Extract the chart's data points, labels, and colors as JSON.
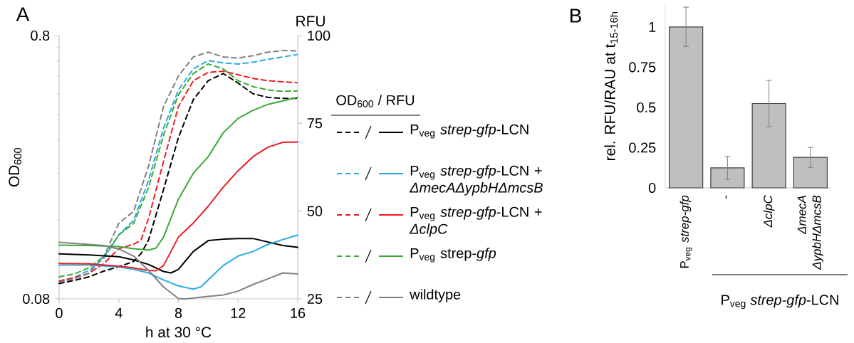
{
  "chart_data": [
    {
      "type": "line",
      "title": "A",
      "xlabel": "h at 30 °C",
      "ylabel": "OD$_{600}$",
      "y2label": "RFU",
      "legend_title": "OD$_{600}$ / RFU",
      "legend": "right",
      "log": "y",
      "xlim": [
        0,
        16
      ],
      "xticks": [
        0,
        4,
        8,
        12,
        16
      ],
      "ylim": [
        0.08,
        0.8
      ],
      "yticks": [
        0.08,
        0.8
      ],
      "y2lim": [
        25,
        100
      ],
      "y2ticks": [
        25,
        50,
        75,
        100
      ],
      "series": [
        {
          "color": "#000000",
          "axis": "y",
          "line_style": "dashed",
          "x": [
            0,
            1,
            2,
            3,
            4,
            5,
            5.5,
            6,
            7,
            8,
            9,
            10,
            11,
            12,
            13,
            14,
            15,
            16
          ],
          "values": [
            0.0915,
            0.094,
            0.097,
            0.102,
            0.106,
            0.111,
            0.119,
            0.134,
            0.208,
            0.328,
            0.457,
            0.539,
            0.574,
            0.528,
            0.481,
            0.466,
            0.462,
            0.462
          ]
        },
        {
          "name": "P$_{veg}$ *strep-gfp*-LCN",
          "color": "#000000",
          "axis": "y2",
          "line_style": "solid",
          "x": [
            0,
            2,
            4,
            5,
            6,
            7,
            7.5,
            8,
            9,
            10,
            11,
            12,
            13,
            14,
            15,
            16
          ],
          "values": [
            37.8,
            37.5,
            37.0,
            36.1,
            34.8,
            32.8,
            32.4,
            33.4,
            38.5,
            41.6,
            42.0,
            42.2,
            42.2,
            41.2,
            40.2,
            39.7
          ]
        },
        {
          "color": "#29abe2",
          "axis": "y",
          "line_style": "dashed",
          "x": [
            0,
            1,
            2,
            3,
            4,
            5,
            6,
            7,
            8,
            9,
            10,
            11,
            12,
            13,
            14,
            15,
            16
          ],
          "values": [
            0.0925,
            0.0964,
            0.1026,
            0.114,
            0.14,
            0.159,
            0.226,
            0.356,
            0.497,
            0.598,
            0.643,
            0.63,
            0.624,
            0.634,
            0.65,
            0.664,
            0.678
          ]
        },
        {
          "name": "P$_{veg}$ *strep-gfp*-LCN + *ΔmecAΔypbHΔmcsB*",
          "color": "#29abe2",
          "axis": "y2",
          "line_style": "solid",
          "x": [
            0,
            2,
            4,
            5,
            6,
            7,
            8,
            9,
            9.5,
            10,
            11,
            12,
            13,
            14,
            15,
            16
          ],
          "values": [
            34.6,
            34.6,
            34.1,
            33.4,
            32.4,
            30.4,
            28.7,
            27.8,
            28.4,
            30.4,
            34.5,
            37.2,
            38.5,
            40.5,
            41.9,
            43.2
          ]
        },
        {
          "color": "#ed1c24",
          "axis": "y",
          "line_style": "dashed",
          "x": [
            0,
            1,
            2,
            3,
            4,
            5,
            5.5,
            6,
            7,
            8,
            9,
            10,
            11,
            12,
            13,
            14,
            15,
            16
          ],
          "values": [
            0.0935,
            0.0964,
            0.1,
            0.109,
            0.124,
            0.129,
            0.134,
            0.162,
            0.266,
            0.43,
            0.539,
            0.58,
            0.586,
            0.568,
            0.55,
            0.539,
            0.534,
            0.53
          ]
        },
        {
          "name": "P$_{veg}$ *strep-gfp*-LCN + *ΔclpC*",
          "color": "#ed1c24",
          "axis": "y2",
          "line_style": "solid",
          "x": [
            0,
            2,
            4,
            5,
            6,
            6.5,
            7,
            7.5,
            8,
            9,
            10,
            11,
            12,
            13,
            14,
            15,
            16
          ],
          "values": [
            35.1,
            35.0,
            34.3,
            33.8,
            33.1,
            33.0,
            34.5,
            38.5,
            42.6,
            46.6,
            51.4,
            56.8,
            61.5,
            65.5,
            68.2,
            69.6,
            69.7
          ]
        },
        {
          "color": "#39a935",
          "axis": "y",
          "line_style": "dashed",
          "x": [
            0,
            1,
            2,
            3,
            4,
            5,
            6,
            7,
            8,
            9,
            10,
            11,
            12,
            13,
            14,
            15,
            16
          ],
          "values": [
            0.097,
            0.0994,
            0.105,
            0.116,
            0.14,
            0.155,
            0.212,
            0.335,
            0.477,
            0.574,
            0.624,
            0.598,
            0.539,
            0.512,
            0.497,
            0.491,
            0.493
          ]
        },
        {
          "name": "P$_{veg}$ strep-*gfp*",
          "color": "#39a935",
          "axis": "y2",
          "line_style": "solid",
          "x": [
            0,
            2,
            4,
            5,
            6,
            6.5,
            7,
            7.5,
            8,
            9,
            10,
            11,
            12,
            13,
            14,
            15,
            16
          ],
          "values": [
            40.3,
            40.2,
            39.9,
            39.3,
            38.9,
            39.5,
            42.6,
            48.0,
            53.4,
            60.8,
            65.5,
            72.3,
            76.4,
            78.7,
            80.4,
            81.4,
            82.4
          ]
        },
        {
          "color": "#808080",
          "axis": "y",
          "line_style": "dashed",
          "x": [
            0,
            1,
            2,
            3,
            3.5,
            4,
            5,
            6,
            7,
            8,
            9,
            10,
            11,
            12,
            13,
            14,
            15,
            16
          ],
          "values": [
            0.0925,
            0.0954,
            0.1,
            0.116,
            0.134,
            0.155,
            0.172,
            0.256,
            0.43,
            0.562,
            0.664,
            0.692,
            0.664,
            0.657,
            0.671,
            0.692,
            0.702,
            0.7
          ]
        },
        {
          "name": "wildtype",
          "color": "#808080",
          "axis": "y2",
          "line_style": "solid",
          "x": [
            0,
            2,
            3,
            4,
            5,
            6,
            7,
            8,
            8.5,
            10,
            11,
            12,
            13,
            14,
            15,
            16
          ],
          "values": [
            41.1,
            40.5,
            40.2,
            39.2,
            37.2,
            33.1,
            28.4,
            25.1,
            25,
            25.7,
            26.1,
            27.2,
            29.1,
            30.7,
            32.4,
            32.1
          ]
        }
      ]
    },
    {
      "type": "bar",
      "title": "B",
      "ylabel": "rel. RFU/RAU at t$_{15-16h}$",
      "categories": [
        "P$_{veg}$ *strep-gfp*",
        "-",
        "*ΔclpC*",
        "*ΔmecA ΔypbHΔmcsB*"
      ],
      "values": [
        1.0,
        0.124,
        0.524,
        0.19
      ],
      "errors": [
        [
          0.879,
          1.123
        ],
        [
          0.052,
          0.195
        ],
        [
          0.38,
          0.668
        ],
        [
          0.127,
          0.251
        ]
      ],
      "color": "#bfbfbf",
      "ylim": [
        0,
        1.15
      ],
      "yticks": [
        0,
        0.25,
        0.5,
        0.75,
        1
      ],
      "annotations": [
        "P$_{veg}$ *strep-gfp*-LCN"
      ]
    }
  ]
}
